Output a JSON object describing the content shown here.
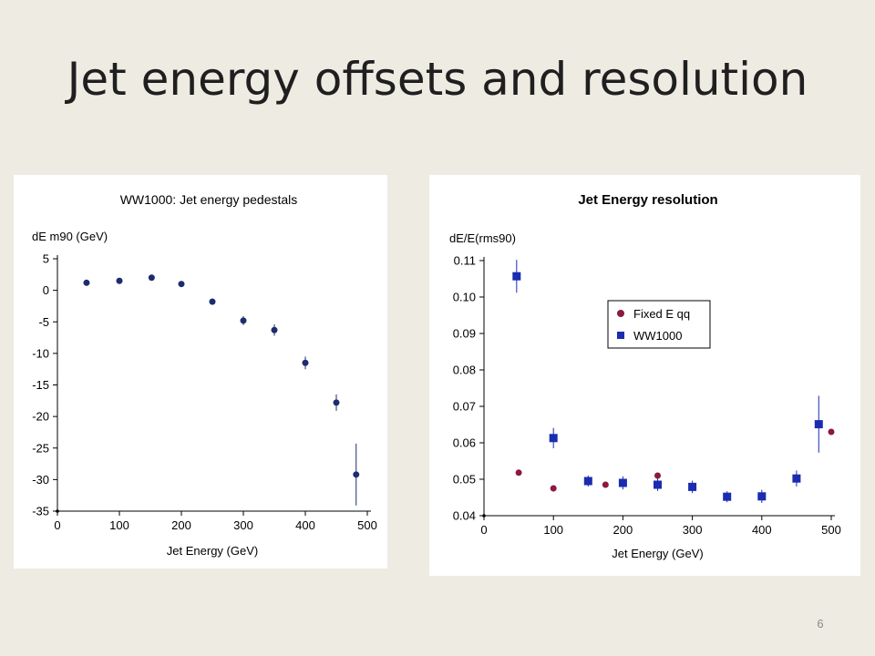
{
  "slide": {
    "title": "Jet energy offsets and resolution",
    "page_number": "6"
  },
  "chart_data": [
    {
      "type": "scatter",
      "title": "WW1000: Jet energy pedestals",
      "ylabel": "dE m90 (GeV)",
      "xlabel": "Jet Energy (GeV)",
      "xlim": [
        0,
        500
      ],
      "ylim": [
        -35,
        5
      ],
      "x_ticks": [
        0,
        100,
        200,
        300,
        400,
        500
      ],
      "y_ticks": [
        5,
        0,
        -5,
        -10,
        -15,
        -20,
        -25,
        -30,
        -35
      ],
      "grid": false,
      "series": [
        {
          "color": "#1c2c6e",
          "marker": "circle",
          "points": [
            {
              "x": 47,
              "y": 1.2,
              "err": 0.3
            },
            {
              "x": 100,
              "y": 1.5,
              "err": 0.3
            },
            {
              "x": 152,
              "y": 2.0,
              "err": 0.3
            },
            {
              "x": 200,
              "y": 1.0,
              "err": 0.3
            },
            {
              "x": 250,
              "y": -1.8,
              "err": 0.5
            },
            {
              "x": 300,
              "y": -4.8,
              "err": 0.7
            },
            {
              "x": 350,
              "y": -6.3,
              "err": 0.9
            },
            {
              "x": 400,
              "y": -11.5,
              "err": 1.0
            },
            {
              "x": 450,
              "y": -17.8,
              "err": 1.3
            },
            {
              "x": 482,
              "y": -29.2,
              "err": 4.9
            }
          ]
        }
      ]
    },
    {
      "type": "scatter",
      "title": "Jet Energy resolution",
      "ylabel": "dE/E(rms90)",
      "xlabel": "Jet Energy (GeV)",
      "xlim": [
        0,
        500
      ],
      "ylim": [
        0.04,
        0.11
      ],
      "x_ticks": [
        0,
        100,
        200,
        300,
        400,
        500
      ],
      "y_ticks": [
        0.11,
        0.1,
        0.09,
        0.08,
        0.07,
        0.06,
        0.05,
        0.04
      ],
      "grid": false,
      "legend": "top-center",
      "series": [
        {
          "name": "Fixed E qq",
          "color": "#8b1a3c",
          "marker": "circle",
          "points": [
            {
              "x": 50,
              "y": 0.0518
            },
            {
              "x": 100,
              "y": 0.0475
            },
            {
              "x": 175,
              "y": 0.0485
            },
            {
              "x": 250,
              "y": 0.051
            },
            {
              "x": 500,
              "y": 0.063
            }
          ]
        },
        {
          "name": "WW1000",
          "color": "#1a2cb0",
          "marker": "square",
          "points": [
            {
              "x": 47,
              "y": 0.1057,
              "err": 0.0045
            },
            {
              "x": 100,
              "y": 0.0613,
              "err": 0.0028
            },
            {
              "x": 150,
              "y": 0.0495,
              "err": 0.0015
            },
            {
              "x": 200,
              "y": 0.049,
              "err": 0.0018
            },
            {
              "x": 250,
              "y": 0.0485,
              "err": 0.0017
            },
            {
              "x": 300,
              "y": 0.0479,
              "err": 0.0017
            },
            {
              "x": 350,
              "y": 0.0452,
              "err": 0.0015
            },
            {
              "x": 400,
              "y": 0.0453,
              "err": 0.0018
            },
            {
              "x": 450,
              "y": 0.0502,
              "err": 0.0022
            },
            {
              "x": 482,
              "y": 0.0651,
              "err": 0.0078
            }
          ]
        }
      ]
    }
  ]
}
